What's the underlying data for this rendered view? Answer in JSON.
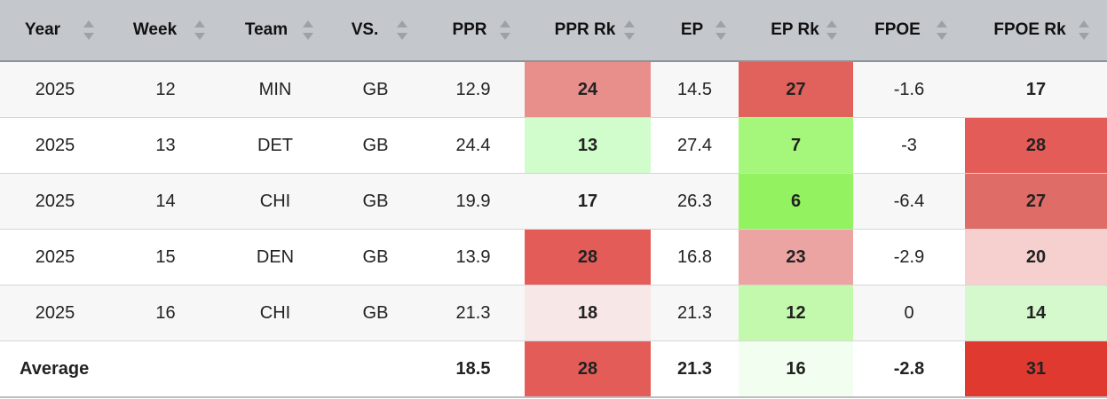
{
  "columns": [
    "Year",
    "Week",
    "Team",
    "VS.",
    "PPR",
    "PPR Rk",
    "EP",
    "EP Rk",
    "FPOE",
    "FPOE Rk"
  ],
  "rows": [
    {
      "year": "2025",
      "week": "12",
      "team": "MIN",
      "vs": "GB",
      "ppr": "12.9",
      "ppr_rk": "24",
      "ep": "14.5",
      "ep_rk": "27",
      "fpoe": "-1.6",
      "fpoe_rk": "17"
    },
    {
      "year": "2025",
      "week": "13",
      "team": "DET",
      "vs": "GB",
      "ppr": "24.4",
      "ppr_rk": "13",
      "ep": "27.4",
      "ep_rk": "7",
      "fpoe": "-3",
      "fpoe_rk": "28"
    },
    {
      "year": "2025",
      "week": "14",
      "team": "CHI",
      "vs": "GB",
      "ppr": "19.9",
      "ppr_rk": "17",
      "ep": "26.3",
      "ep_rk": "6",
      "fpoe": "-6.4",
      "fpoe_rk": "27"
    },
    {
      "year": "2025",
      "week": "15",
      "team": "DEN",
      "vs": "GB",
      "ppr": "13.9",
      "ppr_rk": "28",
      "ep": "16.8",
      "ep_rk": "23",
      "fpoe": "-2.9",
      "fpoe_rk": "20"
    },
    {
      "year": "2025",
      "week": "16",
      "team": "CHI",
      "vs": "GB",
      "ppr": "21.3",
      "ppr_rk": "18",
      "ep": "21.3",
      "ep_rk": "12",
      "fpoe": "0",
      "fpoe_rk": "14"
    }
  ],
  "average": {
    "label": "Average",
    "ppr": "18.5",
    "ppr_rk": "28",
    "ep": "21.3",
    "ep_rk": "16",
    "fpoe": "-2.8",
    "fpoe_rk": "31"
  },
  "cell_colors": {
    "rows": [
      {
        "ppr_rk": "#e88f8b",
        "ep_rk": "#e1615c",
        "fpoe_rk": "#f7f7f7"
      },
      {
        "ppr_rk": "#d1fccb",
        "ep_rk": "#a4f77a",
        "fpoe_rk": "#e45c57"
      },
      {
        "ppr_rk": "#f7f7f7",
        "ep_rk": "#92f25f",
        "fpoe_rk": "#e06c67"
      },
      {
        "ppr_rk": "#e45c57",
        "ep_rk": "#eba4a1",
        "fpoe_rk": "#f6d0cf"
      },
      {
        "ppr_rk": "#f8e7e7",
        "ep_rk": "#c3f9ad",
        "fpoe_rk": "#d5f9cd"
      }
    ],
    "average": {
      "ppr_rk": "#e45c57",
      "ep_rk": "#f2fff0",
      "fpoe_rk": "#e0392f"
    }
  }
}
